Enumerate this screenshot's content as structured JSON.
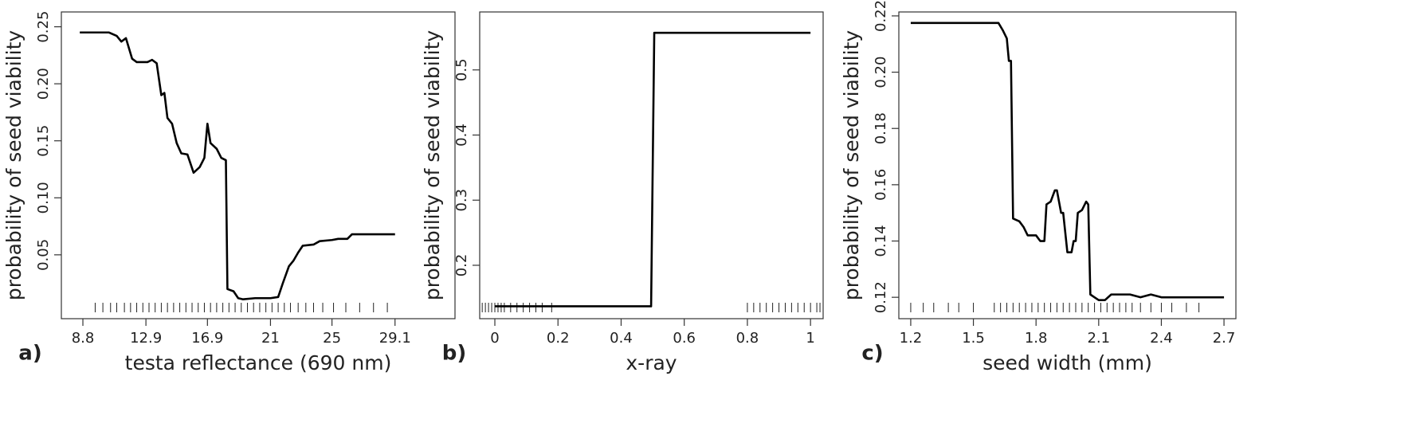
{
  "chart_data": [
    {
      "type": "line",
      "panel_label": "a)",
      "xlabel": "testa reflectance (690 nm)",
      "ylabel": "probability of seed viability",
      "color": "#000000",
      "x": [
        8.6,
        10.5,
        11.0,
        11.3,
        11.6,
        12.0,
        12.3,
        13.0,
        13.3,
        13.6,
        13.9,
        14.1,
        14.3,
        14.6,
        14.9,
        15.2,
        15.6,
        16.0,
        16.4,
        16.7,
        16.9,
        17.1,
        17.5,
        17.8,
        18.1,
        18.2,
        18.6,
        18.9,
        19.2,
        20.0,
        21.0,
        21.5,
        21.8,
        22.2,
        22.5,
        22.8,
        23.1,
        23.8,
        24.2,
        25.0,
        25.4,
        26.0,
        26.3,
        29.1
      ],
      "values": [
        0.245,
        0.245,
        0.242,
        0.237,
        0.24,
        0.222,
        0.219,
        0.219,
        0.221,
        0.218,
        0.19,
        0.192,
        0.17,
        0.165,
        0.148,
        0.139,
        0.138,
        0.122,
        0.127,
        0.135,
        0.165,
        0.148,
        0.143,
        0.135,
        0.133,
        0.02,
        0.018,
        0.012,
        0.011,
        0.012,
        0.012,
        0.013,
        0.025,
        0.04,
        0.045,
        0.052,
        0.058,
        0.059,
        0.062,
        0.063,
        0.064,
        0.064,
        0.068,
        0.068
      ],
      "rug": [
        9.6,
        10.1,
        10.6,
        11.0,
        11.5,
        11.9,
        12.3,
        12.7,
        13.1,
        13.5,
        13.9,
        14.3,
        14.7,
        15.1,
        15.5,
        15.9,
        16.3,
        16.7,
        17.1,
        17.5,
        17.9,
        18.3,
        18.7,
        19.1,
        19.5,
        19.9,
        20.3,
        20.7,
        21.1,
        21.5,
        21.9,
        22.3,
        22.8,
        23.3,
        23.8,
        24.4,
        25.1,
        25.9,
        26.8,
        27.7,
        28.6
      ],
      "xlim": [
        7.4,
        33.0
      ],
      "ylim": [
        -0.006,
        0.263
      ],
      "xticks": [
        8.8,
        12.9,
        16.9,
        21,
        25,
        29.1
      ],
      "yticks": [
        0.05,
        {
          "value": 0.1,
          "label": "0.10"
        },
        0.15,
        {
          "value": 0.2,
          "label": "0.20"
        },
        0.25
      ]
    },
    {
      "type": "line",
      "panel_label": "b)",
      "xlabel": "x-ray",
      "ylabel": "probability of seed viability",
      "color": "#000000",
      "x": [
        0,
        0.495,
        0.505,
        1
      ],
      "values": [
        0.137,
        0.137,
        0.557,
        0.557
      ],
      "rug": [
        -0.04,
        -0.03,
        -0.02,
        -0.01,
        0.0,
        0.01,
        0.02,
        0.03,
        0.05,
        0.07,
        0.09,
        0.11,
        0.13,
        0.15,
        0.18,
        0.8,
        0.82,
        0.84,
        0.86,
        0.88,
        0.9,
        0.92,
        0.94,
        0.96,
        0.98,
        1.0,
        1.02,
        1.03
      ],
      "xlim": [
        -0.048,
        1.04
      ],
      "ylim": [
        0.118,
        0.589
      ],
      "xticks": [
        0,
        0.2,
        0.4,
        0.6,
        0.8,
        1
      ],
      "yticks": [
        0.2,
        0.3,
        0.4,
        0.5
      ]
    },
    {
      "type": "line",
      "panel_label": "c)",
      "xlabel": "seed width (mm)",
      "ylabel": "probability of seed viability",
      "color": "#000000",
      "x": [
        1.2,
        1.62,
        1.64,
        1.66,
        1.67,
        1.68,
        1.69,
        1.72,
        1.74,
        1.76,
        1.8,
        1.82,
        1.84,
        1.85,
        1.87,
        1.89,
        1.9,
        1.92,
        1.93,
        1.95,
        1.97,
        1.98,
        1.99,
        2.0,
        2.02,
        2.04,
        2.05,
        2.06,
        2.08,
        2.1,
        2.13,
        2.16,
        2.2,
        2.25,
        2.3,
        2.35,
        2.4,
        2.7
      ],
      "values": [
        0.2175,
        0.2175,
        0.215,
        0.212,
        0.204,
        0.204,
        0.148,
        0.147,
        0.145,
        0.142,
        0.142,
        0.14,
        0.14,
        0.153,
        0.154,
        0.158,
        0.158,
        0.15,
        0.15,
        0.136,
        0.136,
        0.14,
        0.14,
        0.15,
        0.151,
        0.154,
        0.153,
        0.121,
        0.12,
        0.119,
        0.119,
        0.121,
        0.121,
        0.121,
        0.12,
        0.121,
        0.12,
        0.12
      ],
      "rug": [
        1.2,
        1.26,
        1.31,
        1.38,
        1.43,
        1.5,
        1.6,
        1.63,
        1.66,
        1.69,
        1.72,
        1.75,
        1.78,
        1.81,
        1.84,
        1.87,
        1.9,
        1.93,
        1.96,
        1.99,
        2.02,
        2.05,
        2.08,
        2.11,
        2.14,
        2.17,
        2.2,
        2.23,
        2.26,
        2.3,
        2.35,
        2.4,
        2.45,
        2.52,
        2.58
      ],
      "xlim": [
        1.143,
        2.757
      ],
      "ylim": [
        0.1124,
        0.2214
      ],
      "xticks": [
        1.2,
        1.5,
        1.8,
        2.1,
        2.4,
        2.7
      ],
      "yticks": [
        0.12,
        0.14,
        0.16,
        0.18,
        {
          "value": 0.2,
          "label": "0.20"
        },
        0.22
      ]
    }
  ]
}
